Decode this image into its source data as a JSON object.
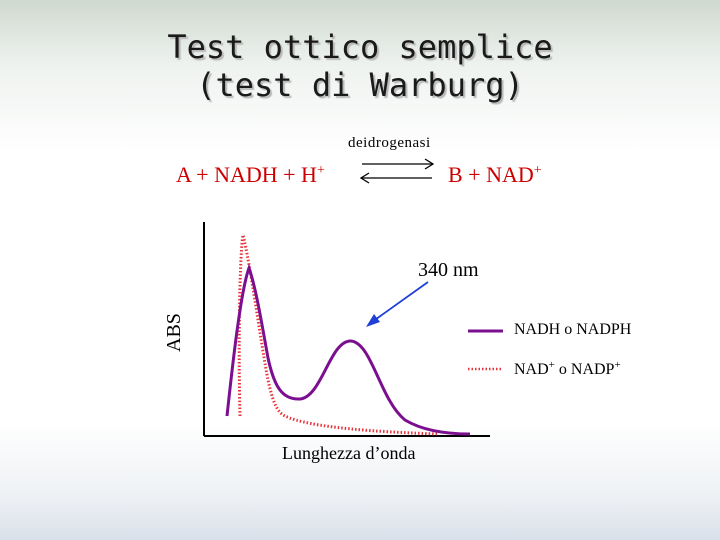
{
  "title": {
    "line1": "Test ottico semplice",
    "line2": "(test di Warburg)"
  },
  "reaction": {
    "enzyme": "deidrogenasi",
    "left": "A + NADH + H",
    "left_sup": "+",
    "right": "B + NAD",
    "right_sup": "+"
  },
  "plot": {
    "ylabel": "ABS",
    "xlabel": "Lunghezza d’onda",
    "annotation": "340 nm",
    "legend": [
      {
        "label": "NADH o NADPH",
        "style": "solid",
        "color": "#7b0f8f"
      },
      {
        "label": "NAD",
        "sup1": "+",
        "mid": " o NADP",
        "sup2": "+",
        "style": "dotted",
        "color": "#e8333a"
      }
    ],
    "colors": {
      "reaction_text": "#cc0000",
      "nadh_curve": "#7b0f8f",
      "nad_curve": "#e8333a",
      "arrow": "#1f3fd6"
    }
  }
}
